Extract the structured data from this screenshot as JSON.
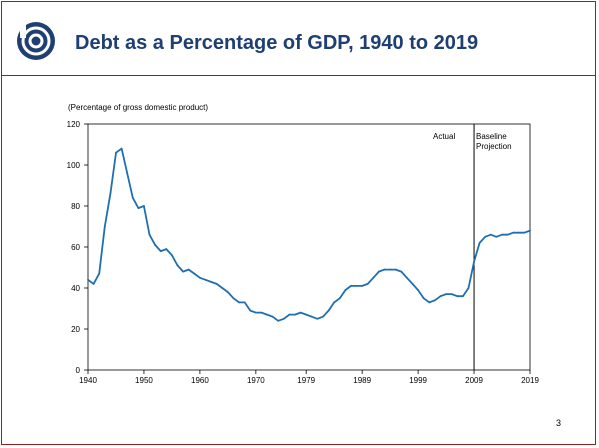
{
  "header": {
    "title": "Debt as a Percentage of GDP, 1940 to 2019",
    "logo_icon": "cbo-logo-icon",
    "accent_color": "#1f3f73",
    "border_color": "#8b2323"
  },
  "page_number": "3",
  "chart_data": {
    "type": "line",
    "title": "Debt as a Percentage of GDP, 1940 to 2019",
    "ylabel": "(Percentage of gross domestic product)",
    "xlabel": "",
    "xlim": [
      1940,
      2019
    ],
    "ylim": [
      0,
      120
    ],
    "x_ticks": [
      "1940",
      "1950",
      "1960",
      "1970",
      "1979",
      "1989",
      "1999",
      "2009",
      "2019"
    ],
    "y_ticks": [
      "0",
      "20",
      "40",
      "60",
      "80",
      "100",
      "120"
    ],
    "grid": false,
    "divider_year": 2009,
    "annotations": {
      "actual": "Actual",
      "projection_line1": "Baseline",
      "projection_line2": "Projection"
    },
    "line_color": "#1f6fb0",
    "series": [
      {
        "x": [
          1940,
          1941,
          1942,
          1943,
          1944,
          1945,
          1946,
          1947,
          1948,
          1949,
          1950,
          1951,
          1952,
          1953,
          1954,
          1955,
          1956,
          1957,
          1958,
          1959,
          1960,
          1961,
          1962,
          1963,
          1964,
          1965,
          1966,
          1967,
          1968,
          1969,
          1970,
          1971,
          1972,
          1973,
          1974,
          1975,
          1976,
          1977,
          1978,
          1979,
          1980,
          1981,
          1982,
          1983,
          1984,
          1985,
          1986,
          1987,
          1988,
          1989,
          1990,
          1991,
          1992,
          1993,
          1994,
          1995,
          1996,
          1997,
          1998,
          1999,
          2000,
          2001,
          2002,
          2003,
          2004,
          2005,
          2006,
          2007,
          2008,
          2009,
          2010,
          2011,
          2012,
          2013,
          2014,
          2015,
          2016,
          2017,
          2018,
          2019
        ],
        "values": [
          44,
          42,
          47,
          70,
          86,
          106,
          108,
          96,
          84,
          79,
          80,
          66,
          61,
          58,
          59,
          56,
          51,
          48,
          49,
          47,
          45,
          44,
          43,
          42,
          40,
          38,
          35,
          33,
          33,
          29,
          28,
          28,
          27,
          26,
          24,
          25,
          27,
          27,
          28,
          27,
          26,
          25,
          26,
          29,
          33,
          35,
          39,
          41,
          41,
          41,
          42,
          45,
          48,
          49,
          49,
          49,
          48,
          45,
          42,
          39,
          35,
          33,
          34,
          36,
          37,
          37,
          36,
          36,
          40,
          53,
          62,
          65,
          66,
          65,
          66,
          66,
          67,
          67,
          67,
          68
        ]
      }
    ]
  }
}
